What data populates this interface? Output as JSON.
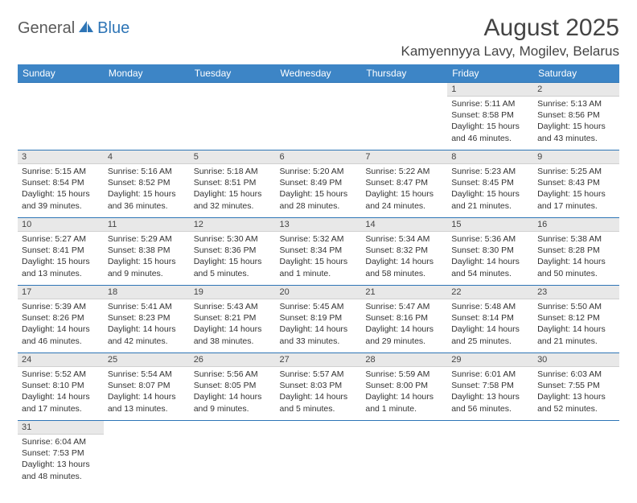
{
  "logo": {
    "text1": "General",
    "text2": "Blue",
    "accent_color": "#2e75b6",
    "text_color": "#5a5a5a"
  },
  "title": "August 2025",
  "location": "Kamyennyya Lavy, Mogilev, Belarus",
  "day_headers": [
    "Sunday",
    "Monday",
    "Tuesday",
    "Wednesday",
    "Thursday",
    "Friday",
    "Saturday"
  ],
  "colors": {
    "header_bg": "#3d85c6",
    "header_fg": "#ffffff",
    "row_rule": "#2e75b6",
    "daynum_bg": "#e8e8e8",
    "text": "#333333"
  },
  "weeks": [
    [
      null,
      null,
      null,
      null,
      null,
      {
        "n": "1",
        "sunrise": "Sunrise: 5:11 AM",
        "sunset": "Sunset: 8:58 PM",
        "daylight": "Daylight: 15 hours and 46 minutes."
      },
      {
        "n": "2",
        "sunrise": "Sunrise: 5:13 AM",
        "sunset": "Sunset: 8:56 PM",
        "daylight": "Daylight: 15 hours and 43 minutes."
      }
    ],
    [
      {
        "n": "3",
        "sunrise": "Sunrise: 5:15 AM",
        "sunset": "Sunset: 8:54 PM",
        "daylight": "Daylight: 15 hours and 39 minutes."
      },
      {
        "n": "4",
        "sunrise": "Sunrise: 5:16 AM",
        "sunset": "Sunset: 8:52 PM",
        "daylight": "Daylight: 15 hours and 36 minutes."
      },
      {
        "n": "5",
        "sunrise": "Sunrise: 5:18 AM",
        "sunset": "Sunset: 8:51 PM",
        "daylight": "Daylight: 15 hours and 32 minutes."
      },
      {
        "n": "6",
        "sunrise": "Sunrise: 5:20 AM",
        "sunset": "Sunset: 8:49 PM",
        "daylight": "Daylight: 15 hours and 28 minutes."
      },
      {
        "n": "7",
        "sunrise": "Sunrise: 5:22 AM",
        "sunset": "Sunset: 8:47 PM",
        "daylight": "Daylight: 15 hours and 24 minutes."
      },
      {
        "n": "8",
        "sunrise": "Sunrise: 5:23 AM",
        "sunset": "Sunset: 8:45 PM",
        "daylight": "Daylight: 15 hours and 21 minutes."
      },
      {
        "n": "9",
        "sunrise": "Sunrise: 5:25 AM",
        "sunset": "Sunset: 8:43 PM",
        "daylight": "Daylight: 15 hours and 17 minutes."
      }
    ],
    [
      {
        "n": "10",
        "sunrise": "Sunrise: 5:27 AM",
        "sunset": "Sunset: 8:41 PM",
        "daylight": "Daylight: 15 hours and 13 minutes."
      },
      {
        "n": "11",
        "sunrise": "Sunrise: 5:29 AM",
        "sunset": "Sunset: 8:38 PM",
        "daylight": "Daylight: 15 hours and 9 minutes."
      },
      {
        "n": "12",
        "sunrise": "Sunrise: 5:30 AM",
        "sunset": "Sunset: 8:36 PM",
        "daylight": "Daylight: 15 hours and 5 minutes."
      },
      {
        "n": "13",
        "sunrise": "Sunrise: 5:32 AM",
        "sunset": "Sunset: 8:34 PM",
        "daylight": "Daylight: 15 hours and 1 minute."
      },
      {
        "n": "14",
        "sunrise": "Sunrise: 5:34 AM",
        "sunset": "Sunset: 8:32 PM",
        "daylight": "Daylight: 14 hours and 58 minutes."
      },
      {
        "n": "15",
        "sunrise": "Sunrise: 5:36 AM",
        "sunset": "Sunset: 8:30 PM",
        "daylight": "Daylight: 14 hours and 54 minutes."
      },
      {
        "n": "16",
        "sunrise": "Sunrise: 5:38 AM",
        "sunset": "Sunset: 8:28 PM",
        "daylight": "Daylight: 14 hours and 50 minutes."
      }
    ],
    [
      {
        "n": "17",
        "sunrise": "Sunrise: 5:39 AM",
        "sunset": "Sunset: 8:26 PM",
        "daylight": "Daylight: 14 hours and 46 minutes."
      },
      {
        "n": "18",
        "sunrise": "Sunrise: 5:41 AM",
        "sunset": "Sunset: 8:23 PM",
        "daylight": "Daylight: 14 hours and 42 minutes."
      },
      {
        "n": "19",
        "sunrise": "Sunrise: 5:43 AM",
        "sunset": "Sunset: 8:21 PM",
        "daylight": "Daylight: 14 hours and 38 minutes."
      },
      {
        "n": "20",
        "sunrise": "Sunrise: 5:45 AM",
        "sunset": "Sunset: 8:19 PM",
        "daylight": "Daylight: 14 hours and 33 minutes."
      },
      {
        "n": "21",
        "sunrise": "Sunrise: 5:47 AM",
        "sunset": "Sunset: 8:16 PM",
        "daylight": "Daylight: 14 hours and 29 minutes."
      },
      {
        "n": "22",
        "sunrise": "Sunrise: 5:48 AM",
        "sunset": "Sunset: 8:14 PM",
        "daylight": "Daylight: 14 hours and 25 minutes."
      },
      {
        "n": "23",
        "sunrise": "Sunrise: 5:50 AM",
        "sunset": "Sunset: 8:12 PM",
        "daylight": "Daylight: 14 hours and 21 minutes."
      }
    ],
    [
      {
        "n": "24",
        "sunrise": "Sunrise: 5:52 AM",
        "sunset": "Sunset: 8:10 PM",
        "daylight": "Daylight: 14 hours and 17 minutes."
      },
      {
        "n": "25",
        "sunrise": "Sunrise: 5:54 AM",
        "sunset": "Sunset: 8:07 PM",
        "daylight": "Daylight: 14 hours and 13 minutes."
      },
      {
        "n": "26",
        "sunrise": "Sunrise: 5:56 AM",
        "sunset": "Sunset: 8:05 PM",
        "daylight": "Daylight: 14 hours and 9 minutes."
      },
      {
        "n": "27",
        "sunrise": "Sunrise: 5:57 AM",
        "sunset": "Sunset: 8:03 PM",
        "daylight": "Daylight: 14 hours and 5 minutes."
      },
      {
        "n": "28",
        "sunrise": "Sunrise: 5:59 AM",
        "sunset": "Sunset: 8:00 PM",
        "daylight": "Daylight: 14 hours and 1 minute."
      },
      {
        "n": "29",
        "sunrise": "Sunrise: 6:01 AM",
        "sunset": "Sunset: 7:58 PM",
        "daylight": "Daylight: 13 hours and 56 minutes."
      },
      {
        "n": "30",
        "sunrise": "Sunrise: 6:03 AM",
        "sunset": "Sunset: 7:55 PM",
        "daylight": "Daylight: 13 hours and 52 minutes."
      }
    ],
    [
      {
        "n": "31",
        "sunrise": "Sunrise: 6:04 AM",
        "sunset": "Sunset: 7:53 PM",
        "daylight": "Daylight: 13 hours and 48 minutes."
      },
      null,
      null,
      null,
      null,
      null,
      null
    ]
  ]
}
